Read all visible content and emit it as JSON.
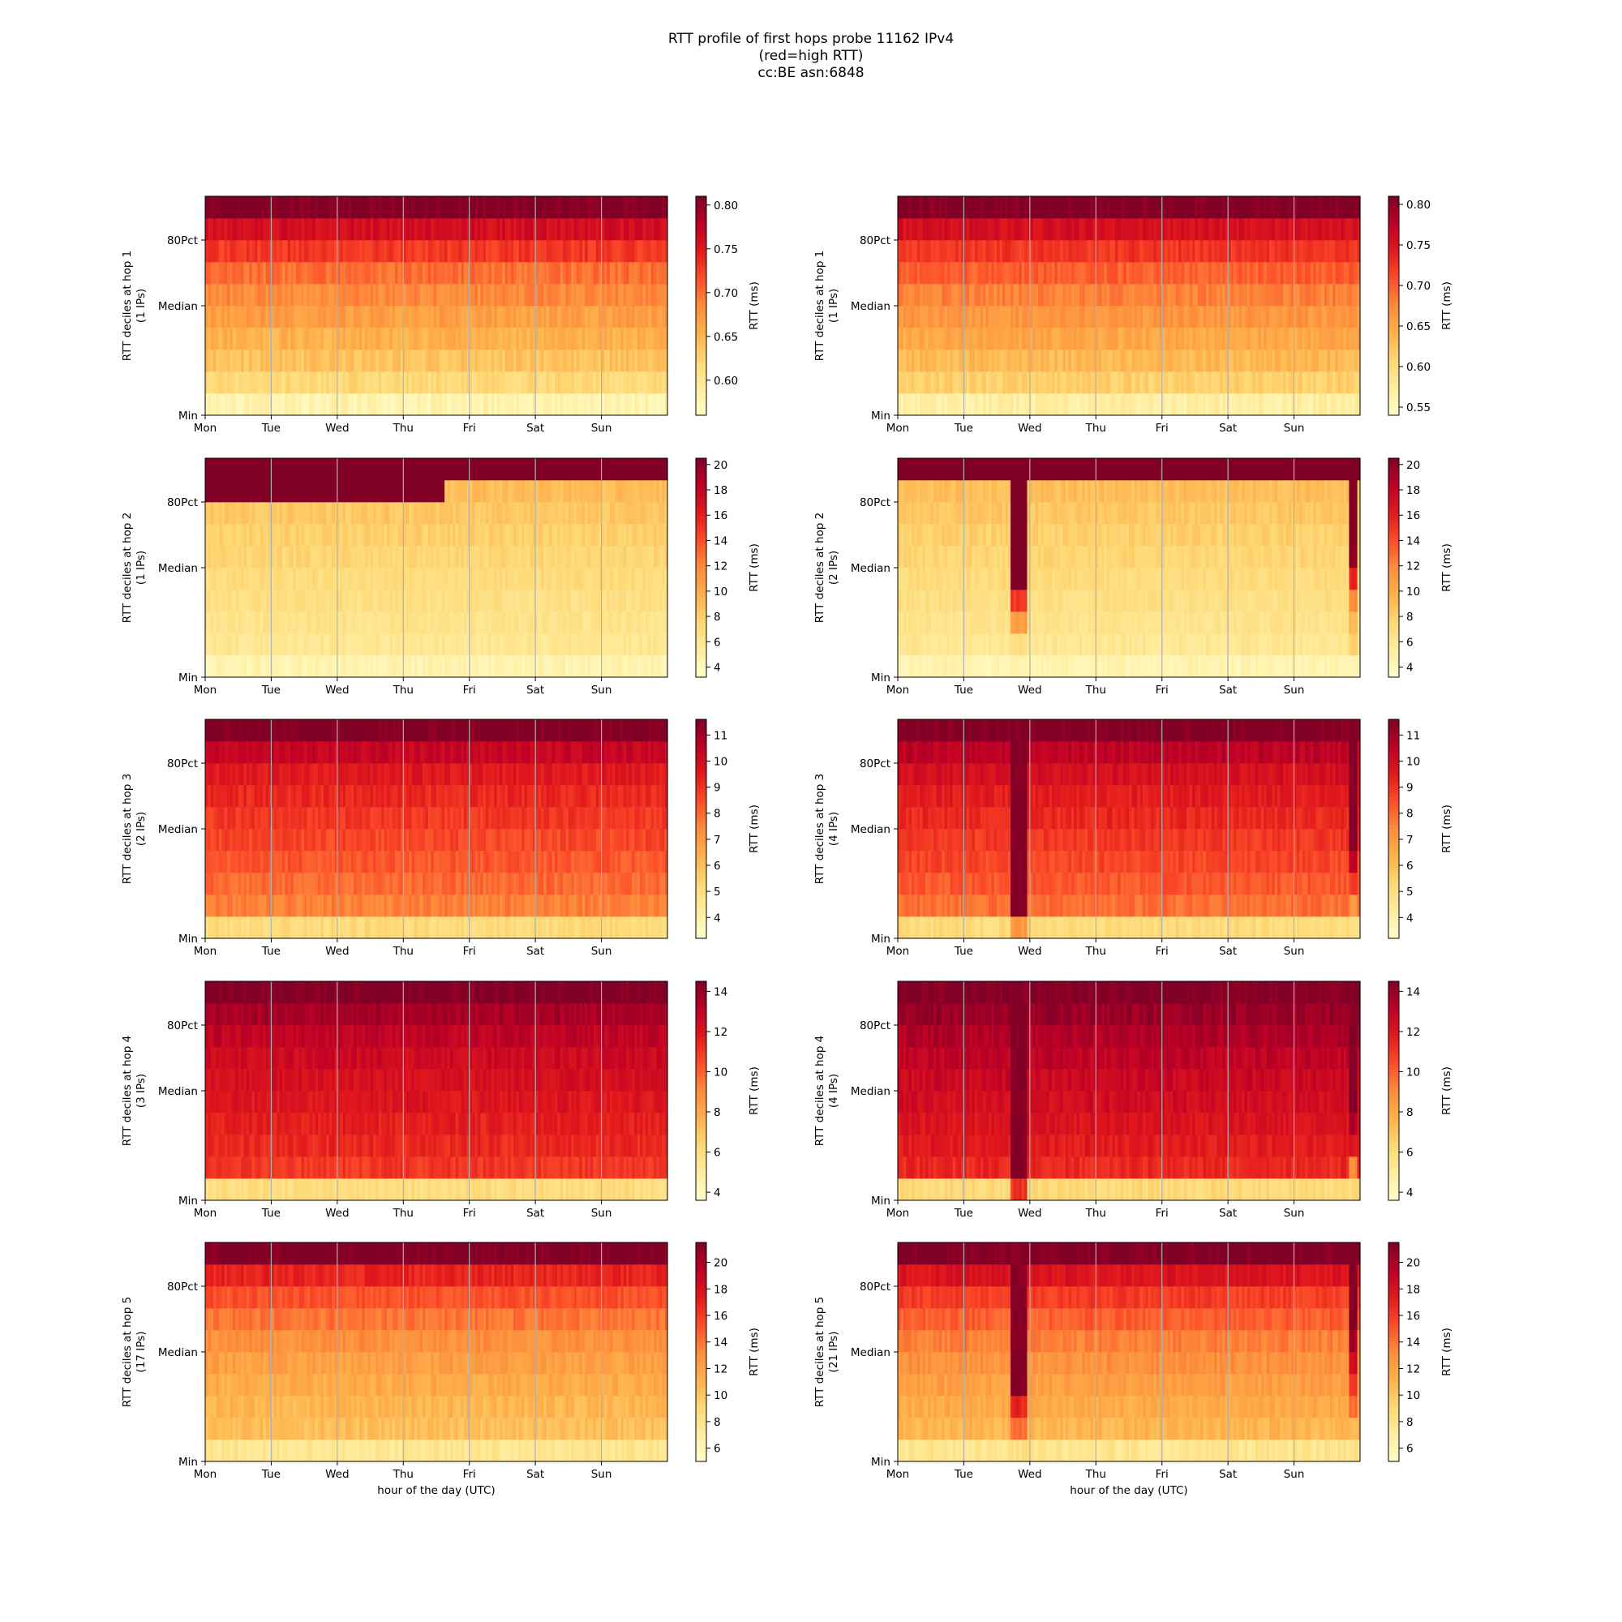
{
  "figure": {
    "title_lines": [
      "RTT profile of first hops probe 11162 IPv4",
      "(red=high RTT)",
      "cc:BE asn:6848"
    ]
  },
  "colors": {
    "colormap": "YlOrRd",
    "stops": [
      "#ffffcc",
      "#ffeda0",
      "#fed976",
      "#feb24c",
      "#fd8d3c",
      "#fc4e2a",
      "#e31a1c",
      "#bd0026",
      "#800026"
    ],
    "gridline": "#b0b0b0"
  },
  "chart_data": [
    {
      "type": "heatmap",
      "column": "left",
      "row": 1,
      "ylabel": "RTT deciles at hop 1",
      "ylabel_sub": "(1 IPs)",
      "x_ticks": [
        "Mon",
        "Tue",
        "Wed",
        "Thu",
        "Fri",
        "Sat",
        "Sun"
      ],
      "xlabel": "",
      "y_ticks": [
        "Min",
        "Median",
        "80Pct"
      ],
      "colorbar_label": "RTT (ms)",
      "colorbar_range": [
        0.56,
        0.81
      ],
      "colorbar_ticks": [
        "0.60",
        "0.65",
        "0.70",
        "0.75",
        "0.80"
      ],
      "decile_values": [
        0.575,
        0.62,
        0.64,
        0.655,
        0.67,
        0.685,
        0.7,
        0.73,
        0.76,
        0.81
      ],
      "shifts": [],
      "noise": 0.012
    },
    {
      "type": "heatmap",
      "column": "right",
      "row": 1,
      "ylabel": "RTT deciles at hop 1",
      "ylabel_sub": "(1 IPs)",
      "x_ticks": [
        "Mon",
        "Tue",
        "Wed",
        "Thu",
        "Fri",
        "Sat",
        "Sun"
      ],
      "xlabel": "",
      "y_ticks": [
        "Min",
        "Median",
        "80Pct"
      ],
      "colorbar_label": "RTT (ms)",
      "colorbar_range": [
        0.54,
        0.81
      ],
      "colorbar_ticks": [
        "0.55",
        "0.60",
        "0.65",
        "0.70",
        "0.75",
        "0.80"
      ],
      "decile_values": [
        0.565,
        0.615,
        0.635,
        0.65,
        0.665,
        0.68,
        0.7,
        0.725,
        0.755,
        0.81
      ],
      "shifts": [],
      "noise": 0.012
    },
    {
      "type": "heatmap",
      "column": "left",
      "row": 2,
      "ylabel": "RTT deciles at hop 2",
      "ylabel_sub": "(1 IPs)",
      "x_ticks": [
        "Mon",
        "Tue",
        "Wed",
        "Thu",
        "Fri",
        "Sat",
        "Sun"
      ],
      "xlabel": "",
      "y_ticks": [
        "Min",
        "Median",
        "80Pct"
      ],
      "colorbar_label": "RTT (ms)",
      "colorbar_range": [
        3.2,
        20.5
      ],
      "colorbar_ticks": [
        "4",
        "6",
        "8",
        "10",
        "12",
        "14",
        "16",
        "18",
        "20"
      ],
      "decile_values": [
        4.3,
        6.0,
        6.4,
        6.8,
        7.2,
        7.6,
        8.0,
        8.5,
        21.0,
        21.0
      ],
      "shifts": [
        {
          "from_day": 3.6,
          "to_day": 7.0,
          "values": [
            4.3,
            6.0,
            6.4,
            6.8,
            7.2,
            7.6,
            8.0,
            8.5,
            9.0,
            21.0
          ]
        }
      ],
      "noise": 0.6
    },
    {
      "type": "heatmap",
      "column": "right",
      "row": 2,
      "ylabel": "RTT deciles at hop 2",
      "ylabel_sub": "(2 IPs)",
      "x_ticks": [
        "Mon",
        "Tue",
        "Wed",
        "Thu",
        "Fri",
        "Sat",
        "Sun"
      ],
      "xlabel": "",
      "y_ticks": [
        "Min",
        "Median",
        "80Pct"
      ],
      "colorbar_label": "RTT (ms)",
      "colorbar_range": [
        3.2,
        20.5
      ],
      "colorbar_ticks": [
        "4",
        "6",
        "8",
        "10",
        "12",
        "14",
        "16",
        "18",
        "20"
      ],
      "decile_values": [
        4.3,
        6.0,
        6.4,
        6.8,
        7.2,
        7.6,
        8.0,
        8.5,
        9.0,
        21.0
      ],
      "shifts": [
        {
          "from_day": 1.7,
          "to_day": 1.95,
          "values": [
            4.3,
            7.0,
            11.0,
            15.0,
            21.0,
            21.0,
            21.0,
            21.0,
            21.0,
            21.0
          ]
        },
        {
          "from_day": 6.8,
          "to_day": 6.95,
          "values": [
            4.3,
            8.0,
            9.0,
            12.0,
            16.0,
            20.0,
            21.0,
            21.0,
            21.0,
            21.0
          ]
        }
      ],
      "noise": 0.6
    },
    {
      "type": "heatmap",
      "column": "left",
      "row": 3,
      "ylabel": "RTT deciles at hop 3",
      "ylabel_sub": "(2 IPs)",
      "x_ticks": [
        "Mon",
        "Tue",
        "Wed",
        "Thu",
        "Fri",
        "Sat",
        "Sun"
      ],
      "xlabel": "",
      "y_ticks": [
        "Min",
        "Median",
        "80Pct"
      ],
      "colorbar_label": "RTT (ms)",
      "colorbar_range": [
        3.2,
        11.6
      ],
      "colorbar_ticks": [
        "4",
        "5",
        "6",
        "7",
        "8",
        "9",
        "10",
        "11"
      ],
      "decile_values": [
        5.0,
        7.6,
        8.0,
        8.3,
        8.6,
        8.9,
        9.2,
        9.6,
        10.3,
        11.6
      ],
      "shifts": [],
      "noise": 0.35
    },
    {
      "type": "heatmap",
      "column": "right",
      "row": 3,
      "ylabel": "RTT deciles at hop 3",
      "ylabel_sub": "(4 IPs)",
      "x_ticks": [
        "Mon",
        "Tue",
        "Wed",
        "Thu",
        "Fri",
        "Sat",
        "Sun"
      ],
      "xlabel": "",
      "y_ticks": [
        "Min",
        "Median",
        "80Pct"
      ],
      "colorbar_label": "RTT (ms)",
      "colorbar_range": [
        3.2,
        11.6
      ],
      "colorbar_ticks": [
        "4",
        "5",
        "6",
        "7",
        "8",
        "9",
        "10",
        "11"
      ],
      "decile_values": [
        5.0,
        7.9,
        8.3,
        8.6,
        8.9,
        9.2,
        9.5,
        9.9,
        10.5,
        11.6
      ],
      "shifts": [
        {
          "from_day": 1.7,
          "to_day": 1.95,
          "values": [
            7.0,
            11.6,
            11.6,
            11.6,
            11.6,
            11.6,
            11.6,
            11.6,
            11.6,
            11.6
          ]
        },
        {
          "from_day": 6.8,
          "to_day": 6.95,
          "values": [
            5.0,
            7.0,
            9.0,
            10.5,
            11.6,
            11.6,
            11.6,
            11.6,
            11.6,
            11.6
          ]
        }
      ],
      "noise": 0.35
    },
    {
      "type": "heatmap",
      "column": "left",
      "row": 4,
      "ylabel": "RTT deciles at hop 4",
      "ylabel_sub": "(3 IPs)",
      "x_ticks": [
        "Mon",
        "Tue",
        "Wed",
        "Thu",
        "Fri",
        "Sat",
        "Sun"
      ],
      "xlabel": "",
      "y_ticks": [
        "Min",
        "Median",
        "80Pct"
      ],
      "colorbar_label": "RTT (ms)",
      "colorbar_range": [
        3.6,
        14.5
      ],
      "colorbar_ticks": [
        "4",
        "6",
        "8",
        "10",
        "12",
        "14"
      ],
      "decile_values": [
        5.8,
        11.0,
        11.4,
        11.7,
        12.0,
        12.3,
        12.6,
        13.0,
        13.6,
        14.5
      ],
      "shifts": [],
      "noise": 0.45
    },
    {
      "type": "heatmap",
      "column": "right",
      "row": 4,
      "ylabel": "RTT deciles at hop 4",
      "ylabel_sub": "(4 IPs)",
      "x_ticks": [
        "Mon",
        "Tue",
        "Wed",
        "Thu",
        "Fri",
        "Sat",
        "Sun"
      ],
      "xlabel": "",
      "y_ticks": [
        "Min",
        "Median",
        "80Pct"
      ],
      "colorbar_label": "RTT (ms)",
      "colorbar_range": [
        3.6,
        14.5
      ],
      "colorbar_ticks": [
        "4",
        "6",
        "8",
        "10",
        "12",
        "14"
      ],
      "decile_values": [
        6.0,
        11.4,
        11.8,
        12.1,
        12.4,
        12.7,
        13.0,
        13.4,
        13.9,
        14.5
      ],
      "shifts": [
        {
          "from_day": 1.7,
          "to_day": 1.95,
          "values": [
            11.0,
            14.5,
            14.5,
            14.5,
            14.5,
            14.5,
            14.5,
            14.5,
            14.5,
            14.5
          ]
        },
        {
          "from_day": 6.8,
          "to_day": 6.95,
          "values": [
            6.0,
            9.0,
            12.0,
            13.5,
            14.5,
            14.5,
            14.5,
            14.5,
            14.5,
            14.5
          ]
        }
      ],
      "noise": 0.45
    },
    {
      "type": "heatmap",
      "column": "left",
      "row": 5,
      "ylabel": "RTT deciles at hop 5",
      "ylabel_sub": "(17 IPs)",
      "x_ticks": [
        "Mon",
        "Tue",
        "Wed",
        "Thu",
        "Fri",
        "Sat",
        "Sun"
      ],
      "xlabel": "hour of the day (UTC)",
      "y_ticks": [
        "Min",
        "Median",
        "80Pct"
      ],
      "colorbar_label": "RTT (ms)",
      "colorbar_range": [
        5.0,
        21.5
      ],
      "colorbar_ticks": [
        "6",
        "8",
        "10",
        "12",
        "14",
        "16",
        "18",
        "20"
      ],
      "decile_values": [
        7.5,
        10.5,
        11.0,
        11.6,
        12.2,
        13.0,
        14.0,
        15.2,
        17.0,
        21.5
      ],
      "shifts": [],
      "noise": 0.7
    },
    {
      "type": "heatmap",
      "column": "right",
      "row": 5,
      "ylabel": "RTT deciles at hop 5",
      "ylabel_sub": "(21 IPs)",
      "x_ticks": [
        "Mon",
        "Tue",
        "Wed",
        "Thu",
        "Fri",
        "Sat",
        "Sun"
      ],
      "xlabel": "hour of the day (UTC)",
      "y_ticks": [
        "Min",
        "Median",
        "80Pct"
      ],
      "colorbar_label": "RTT (ms)",
      "colorbar_range": [
        5.0,
        21.5
      ],
      "colorbar_ticks": [
        "6",
        "8",
        "10",
        "12",
        "14",
        "16",
        "18",
        "20"
      ],
      "decile_values": [
        7.5,
        11.0,
        11.6,
        12.2,
        12.9,
        13.7,
        14.8,
        16.0,
        17.8,
        21.5
      ],
      "shifts": [
        {
          "from_day": 1.7,
          "to_day": 1.95,
          "values": [
            8.0,
            14.0,
            17.0,
            21.5,
            21.5,
            21.5,
            21.5,
            21.5,
            21.5,
            21.5
          ]
        },
        {
          "from_day": 6.8,
          "to_day": 6.95,
          "values": [
            8.0,
            11.0,
            14.0,
            16.0,
            18.0,
            20.0,
            21.5,
            21.5,
            21.5,
            21.5
          ]
        }
      ],
      "noise": 0.7
    }
  ]
}
